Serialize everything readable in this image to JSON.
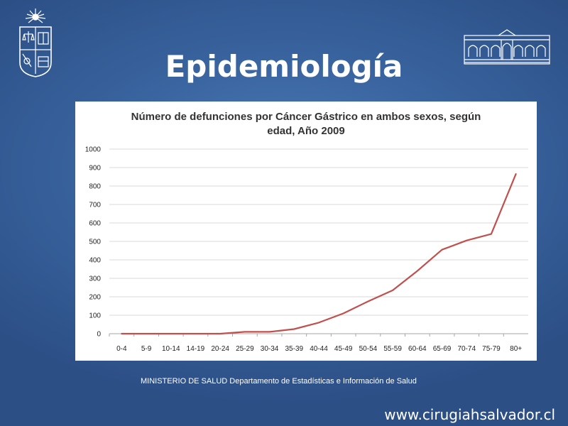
{
  "slide": {
    "title": "Epidemiología",
    "source_note": "MINISTERIO DE SALUD Departamento de Estadísticas e Información de Salud",
    "website": "www.cirugiahsalvador.cl"
  },
  "logos": {
    "left": "university-crest-icon",
    "right": "building-facade-icon"
  },
  "colors": {
    "background": "#3a65a0",
    "line": "#c0504d",
    "grid": "#d9d9d9"
  },
  "chart_data": {
    "type": "line",
    "title_lines": [
      "Número de defunciones por Cáncer Gástrico en ambos sexos, según",
      "edad,  Año 2009"
    ],
    "categories": [
      "0-4",
      "5-9",
      "10-14",
      "14-19",
      "20-24",
      "25-29",
      "30-34",
      "35-39",
      "40-44",
      "45-49",
      "50-54",
      "55-59",
      "60-64",
      "65-69",
      "70-74",
      "75-79",
      "80+"
    ],
    "values": [
      0,
      0,
      0,
      0,
      0,
      10,
      10,
      25,
      60,
      110,
      175,
      235,
      340,
      455,
      505,
      540,
      865
    ],
    "ylim": [
      0,
      1000
    ],
    "yticks": [
      0,
      100,
      200,
      300,
      400,
      500,
      600,
      700,
      800,
      900,
      1000
    ],
    "grid": true,
    "legend": "none"
  }
}
